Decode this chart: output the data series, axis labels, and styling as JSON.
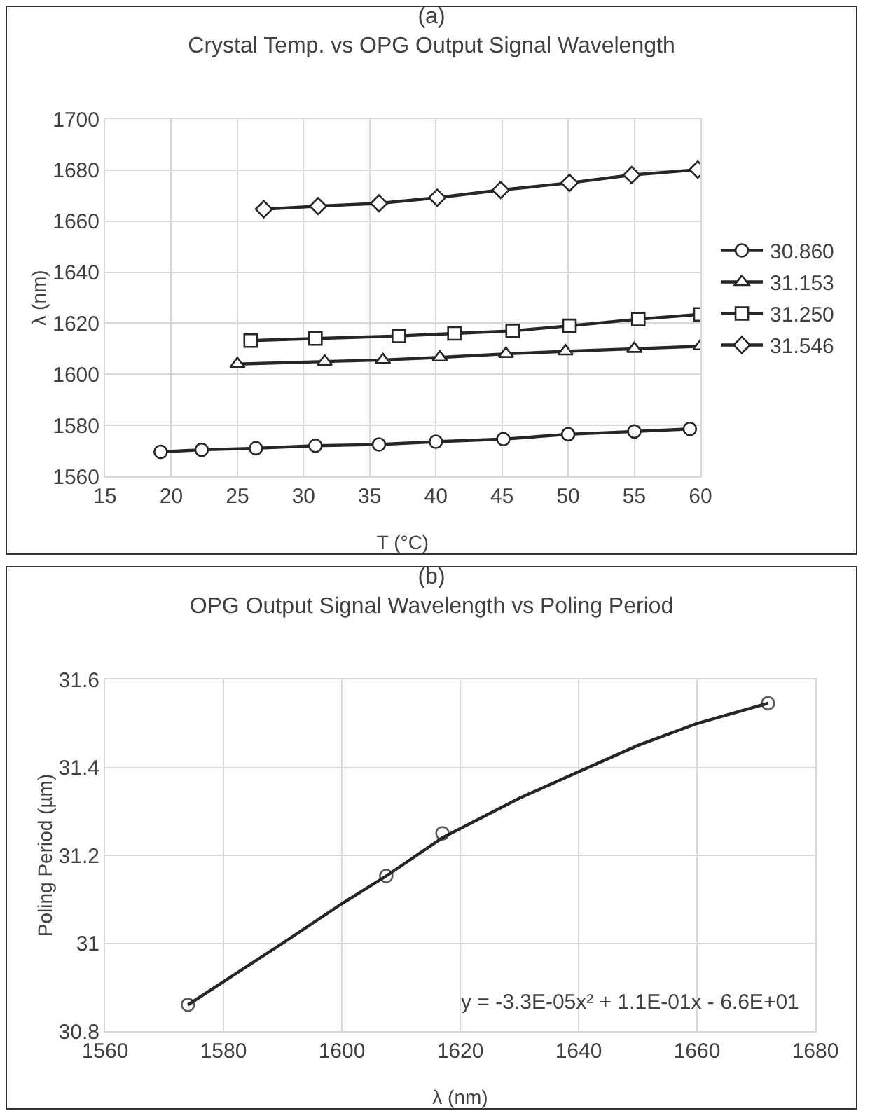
{
  "chart_data": [
    {
      "type": "line",
      "title": "(a)",
      "subtitle": "Crystal Temp. vs OPG Output Signal Wavelength",
      "xlabel": "T (°C)",
      "ylabel": "λ (nm)",
      "xlim": [
        15,
        60
      ],
      "xticks": [
        15,
        20,
        25,
        30,
        35,
        40,
        45,
        50,
        55,
        60
      ],
      "ylim": [
        1560,
        1700
      ],
      "yticks": [
        1560,
        1580,
        1600,
        1620,
        1640,
        1660,
        1680,
        1700
      ],
      "grid": true,
      "legend": "right",
      "series": [
        {
          "name": "30.860",
          "color": "#262626",
          "marker": "circle",
          "x": [
            19.2,
            22.3,
            26.4,
            30.9,
            35.7,
            40.0,
            45.1,
            50.0,
            55.0,
            59.2
          ],
          "values": [
            1569.6,
            1570.4,
            1571,
            1572,
            1572.5,
            1573.6,
            1574.6,
            1576.5,
            1577.6,
            1578.6
          ]
        },
        {
          "name": "31.153",
          "color": "#262626",
          "marker": "triangle",
          "x": [
            25.0,
            31.6,
            36.0,
            40.3,
            45.3,
            49.8,
            55.0,
            60.0
          ],
          "values": [
            1604,
            1605,
            1605.6,
            1606.6,
            1608,
            1609,
            1610,
            1611
          ]
        },
        {
          "name": "31.250",
          "color": "#262626",
          "marker": "square",
          "x": [
            26.0,
            30.9,
            37.2,
            41.4,
            45.8,
            50.1,
            55.3,
            60.0
          ],
          "values": [
            1613.2,
            1614,
            1615,
            1616,
            1617,
            1619,
            1621.6,
            1623.5
          ]
        },
        {
          "name": "31.546",
          "color": "#262626",
          "marker": "diamond",
          "x": [
            27.0,
            31.1,
            35.7,
            40.1,
            44.9,
            50.1,
            54.8,
            59.8
          ],
          "values": [
            1664.7,
            1665.9,
            1667,
            1669.2,
            1672.2,
            1675,
            1678.1,
            1680.2
          ]
        }
      ]
    },
    {
      "type": "scatter",
      "title": "(b)",
      "subtitle": "OPG Output Signal Wavelength vs Poling Period",
      "xlabel": "λ (nm)",
      "ylabel": "Poling Period (µm)",
      "xlim": [
        1560,
        1680
      ],
      "xticks": [
        1560,
        1580,
        1600,
        1620,
        1640,
        1660,
        1680
      ],
      "ylim": [
        30.8,
        31.6
      ],
      "yticks": [
        30.8,
        31,
        31.2,
        31.4,
        31.6
      ],
      "grid": true,
      "legend": false,
      "annotations": [
        "y = -3.3E-05x² + 1.1E-01x - 6.6E+01"
      ],
      "series": [
        {
          "color": "#595959",
          "marker": "circle",
          "x": [
            1574,
            1607.5,
            1617,
            1672
          ],
          "values": [
            30.86,
            31.153,
            31.25,
            31.546
          ]
        },
        {
          "type": "line",
          "color": "#262626",
          "marker": "none",
          "x": [
            1574,
            1590,
            1600,
            1607.5,
            1617,
            1630,
            1640,
            1650,
            1660,
            1672
          ],
          "values": [
            30.86,
            31.0,
            31.09,
            31.153,
            31.24,
            31.33,
            31.39,
            31.45,
            31.5,
            31.546
          ]
        }
      ]
    }
  ]
}
